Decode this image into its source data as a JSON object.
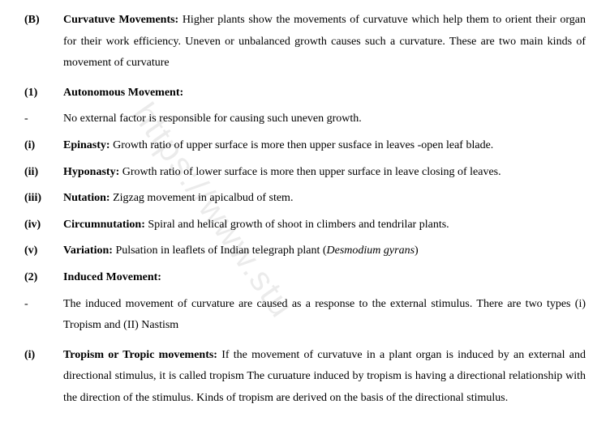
{
  "watermark": "https://www.stu",
  "sections": {
    "B": {
      "label": "(B)",
      "title": "Curvatuve Movements:",
      "body": " Higher plants show the movements of curvatuve which help them to orient their organ for their work efficiency. Uneven or unbalanced growth causes such a curvature. These are two main kinds of movement of curvature"
    },
    "s1": {
      "label": "(1)",
      "title": "Autonomous  Movement:"
    },
    "s1_desc": {
      "label": "-",
      "body": "No external factor is responsible for causing such uneven growth."
    },
    "i": {
      "label": "(i)",
      "title": "Epinasty:",
      "body": " Growth ratio of upper surface is more then upper susface in leaves -open leaf blade."
    },
    "ii": {
      "label": "(ii)",
      "title": "Hyponasty:",
      "body": " Growth ratio of lower surface is more then upper surface in leave closing of leaves."
    },
    "iii": {
      "label": "(iii)",
      "title": "Nutation:",
      "body": " Zigzag movement in apicalbud of stem."
    },
    "iv": {
      "label": "(iv)",
      "title": "Circumnutation:",
      "body": " Spiral and helical growth of shoot in climbers and tendrilar plants."
    },
    "v": {
      "label": "(v)",
      "title": "Variation:",
      "body": " Pulsation in leaflets of Indian telegraph plant (",
      "italic": "Desmodium gyrans",
      "body2": ")"
    },
    "s2": {
      "label": "(2)",
      "title": "Induced  Movement:"
    },
    "s2_desc": {
      "label": "-",
      "body": "The induced movement of curvature are caused as a response to the external stimulus. There are two types (i) Tropism and (II) Nastism"
    },
    "s2_i": {
      "label": "(i)",
      "title": "Tropism or Tropic movements:",
      "body": " If the movement of curvatuve in a plant organ is induced by an external and directional stimulus, it is called tropism The curuature induced by tropism is having  a directional relationship with the direction of the stimulus. Kinds of tropism are derived on the basis of the directional stimulus."
    }
  }
}
